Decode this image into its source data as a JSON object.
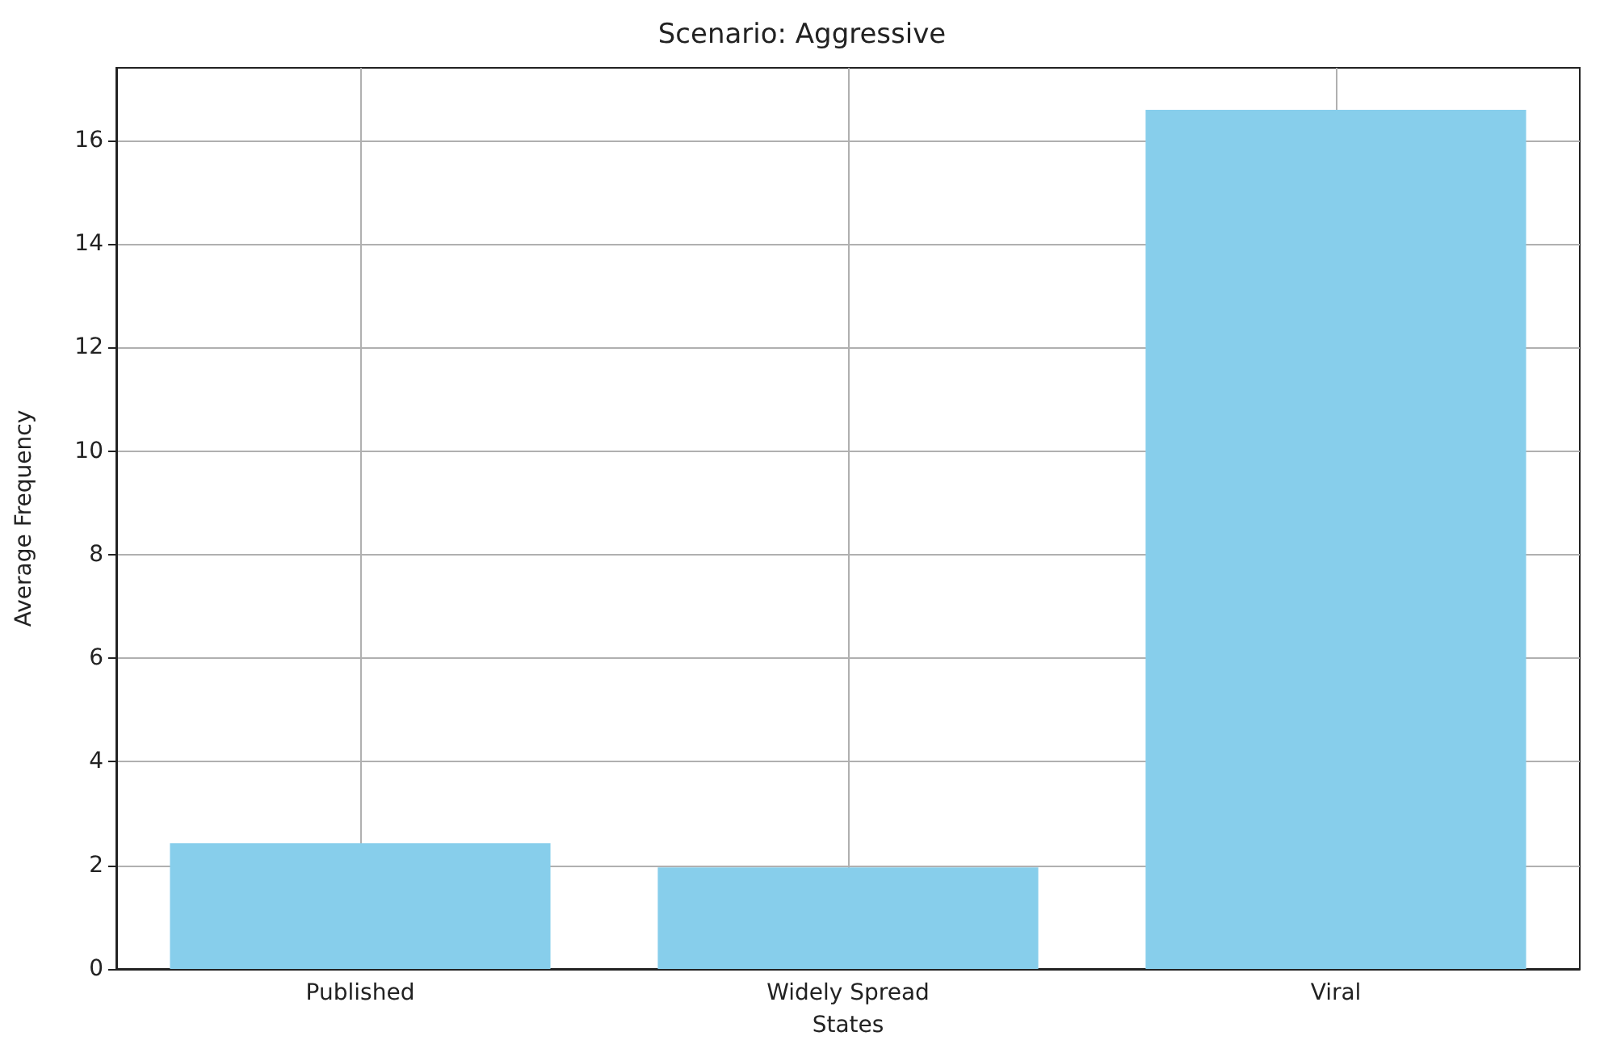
{
  "chart_data": {
    "type": "bar",
    "title": "Scenario: Aggressive",
    "xlabel": "States",
    "ylabel": "Average Frequency",
    "categories": [
      "Published",
      "Widely Spread",
      "Viral"
    ],
    "values": [
      2.43,
      1.96,
      16.59
    ],
    "color": "#87ceeb",
    "ylim": [
      0,
      17.4
    ],
    "yticks": [
      0,
      2,
      4,
      6,
      8,
      10,
      12,
      14,
      16
    ],
    "grid": true
  }
}
